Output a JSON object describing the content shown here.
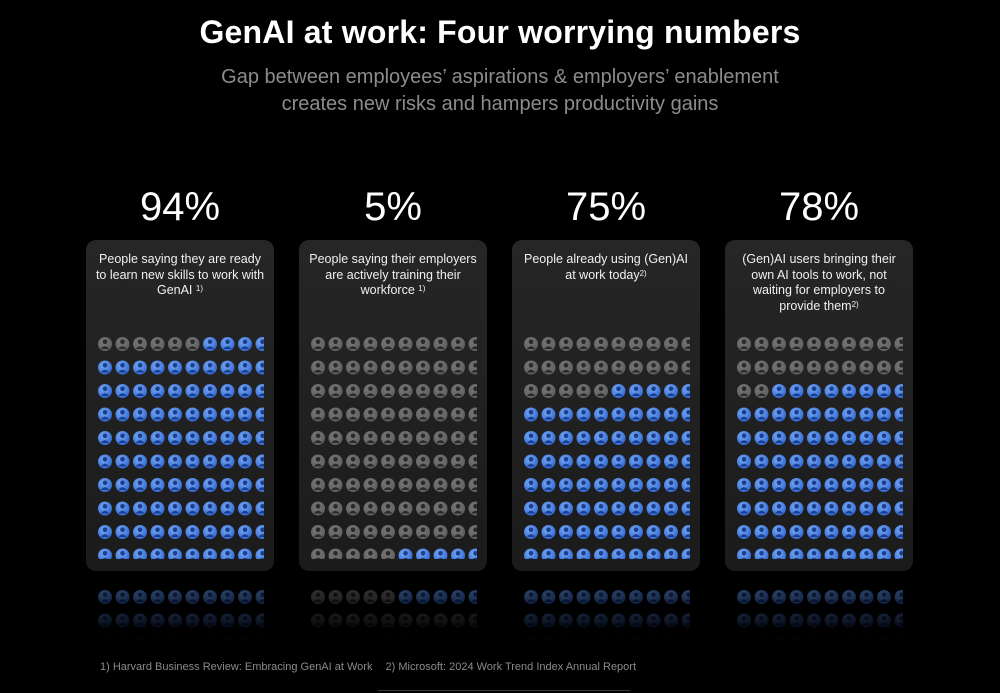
{
  "header": {
    "title": "GenAI at work: Four worrying numbers",
    "subtitle_line1": "Gap between employees’ aspirations & employers’ enablement",
    "subtitle_line2": "creates new risks and hampers productivity gains"
  },
  "colors": {
    "background": "#000000",
    "icon_gray": "#5e5e5e",
    "icon_blue_light": "#7aaaf0",
    "icon_blue_dark": "#2e66d4"
  },
  "chart_data": {
    "type": "waffle",
    "grid": {
      "rows": 10,
      "cols": 10
    },
    "fill_order": "from bottom-right upward",
    "series": [
      {
        "name": "People saying they are ready to learn new skills to work with GenAI",
        "percent_label": "94%",
        "value": 94,
        "desc": "People saying they are ready to learn new skills to work with GenAI",
        "ref": "1)"
      },
      {
        "name": "People saying their employers are actively training their workforce",
        "percent_label": "5%",
        "value": 5,
        "desc": "People saying their employers are actively training their workforce",
        "ref": "1)"
      },
      {
        "name": "People already using (Gen)AI at work today",
        "percent_label": "75%",
        "value": 75,
        "desc": "People already using (Gen)AI at work today",
        "ref": "2)"
      },
      {
        "name": "(Gen)AI users bringing their own AI tools to work, not waiting for employers to provide them",
        "percent_label": "78%",
        "value": 78,
        "desc": "(Gen)AI users bringing their own AI tools to work, not waiting for employers to provide them",
        "ref": "2)"
      }
    ]
  },
  "footnotes": {
    "note1": "1) Harvard Business Review: Embracing GenAI at Work",
    "note2": "2) Microsoft: 2024 Work Trend Index Annual Report"
  }
}
